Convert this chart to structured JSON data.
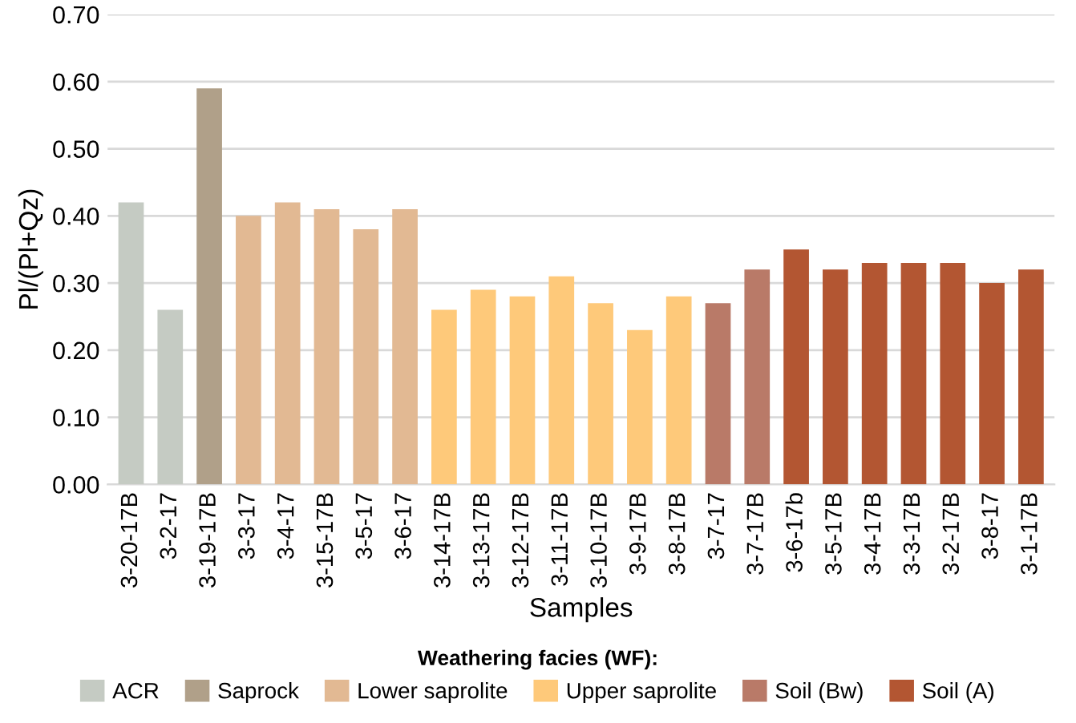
{
  "chart_data": {
    "type": "bar",
    "xlabel": "Samples",
    "ylabel": "Pl/(Pl+Qz)",
    "legend_title": "Weathering facies (WF):",
    "legend": "bottom",
    "grid": "y",
    "ylim": [
      0,
      0.7
    ],
    "yticks": [
      {
        "value": 0,
        "label": "0.00"
      },
      {
        "value": 0.1,
        "label": "0.10"
      },
      {
        "value": 0.2,
        "label": "0.20"
      },
      {
        "value": 0.3,
        "label": "0.30"
      },
      {
        "value": 0.4,
        "label": "0.40"
      },
      {
        "value": 0.5,
        "label": "0.50"
      },
      {
        "value": 0.6,
        "label": "0.60"
      },
      {
        "value": 0.7,
        "label": "0.70"
      }
    ],
    "categories": [
      "3-20-17B",
      "3-2-17",
      "3-19-17B",
      "3-3-17",
      "3-4-17",
      "3-15-17B",
      "3-5-17",
      "3-6-17",
      "3-14-17B",
      "3-13-17B",
      "3-12-17B",
      "3-11-17B",
      "3-10-17B",
      "3-9-17B",
      "3-8-17B",
      "3-7-17",
      "3-7-17B",
      "3-6-17b",
      "3-5-17B",
      "3-4-17B",
      "3-3-17B",
      "3-2-17B",
      "3-8-17",
      "3-1-17B"
    ],
    "series": [
      {
        "name": "ACR",
        "color": "#c5cbc3",
        "values": [
          0.42,
          0.26,
          null,
          null,
          null,
          null,
          null,
          null,
          null,
          null,
          null,
          null,
          null,
          null,
          null,
          null,
          null,
          null,
          null,
          null,
          null,
          null,
          null,
          null
        ]
      },
      {
        "name": "Saprock",
        "color": "#b0a089",
        "values": [
          null,
          null,
          0.59,
          null,
          null,
          null,
          null,
          null,
          null,
          null,
          null,
          null,
          null,
          null,
          null,
          null,
          null,
          null,
          null,
          null,
          null,
          null,
          null,
          null
        ]
      },
      {
        "name": "Lower saprolite",
        "color": "#e2b993",
        "values": [
          null,
          null,
          null,
          0.4,
          0.42,
          0.41,
          0.38,
          0.41,
          null,
          null,
          null,
          null,
          null,
          null,
          null,
          null,
          null,
          null,
          null,
          null,
          null,
          null,
          null,
          null
        ]
      },
      {
        "name": "Upper saprolite",
        "color": "#fec97a",
        "values": [
          null,
          null,
          null,
          null,
          null,
          null,
          null,
          null,
          0.26,
          0.29,
          0.28,
          0.31,
          0.27,
          0.23,
          0.28,
          null,
          null,
          null,
          null,
          null,
          null,
          null,
          null,
          null
        ]
      },
      {
        "name": "Soil (Bw)",
        "color": "#b97a68",
        "values": [
          null,
          null,
          null,
          null,
          null,
          null,
          null,
          null,
          null,
          null,
          null,
          null,
          null,
          null,
          null,
          0.27,
          0.32,
          null,
          null,
          null,
          null,
          null,
          null,
          null
        ]
      },
      {
        "name": "Soil (A)",
        "color": "#b35632",
        "values": [
          null,
          null,
          null,
          null,
          null,
          null,
          null,
          null,
          null,
          null,
          null,
          null,
          null,
          null,
          null,
          null,
          null,
          0.35,
          0.32,
          0.33,
          0.33,
          0.33,
          0.3,
          0.32
        ]
      }
    ]
  }
}
